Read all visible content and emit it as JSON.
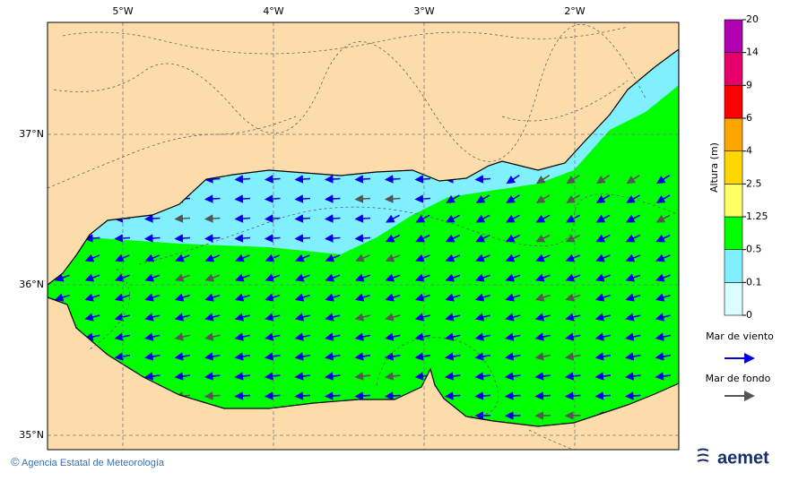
{
  "map": {
    "lon_labels": [
      "5°W",
      "4°W",
      "3°W",
      "2°W"
    ],
    "lat_labels": [
      "37°N",
      "36°N",
      "35°N"
    ]
  },
  "colorbar": {
    "title": "Altura (m)",
    "ticks": [
      0,
      0.1,
      0.5,
      1.25,
      2.5,
      4,
      6,
      9,
      14,
      20
    ],
    "colors": [
      "#d9ffff",
      "#80f0ff",
      "#00ff00",
      "#ffff66",
      "#ffd700",
      "#ffa500",
      "#ff0000",
      "#e6006a",
      "#b000b0"
    ]
  },
  "legend": [
    {
      "label": "Mar de viento",
      "color": "#0000e6"
    },
    {
      "label": "Mar de fondo",
      "color": "#555555"
    }
  ],
  "footer": {
    "agency": "Agencia Estatal de Meteorología",
    "logo": "aemet"
  }
}
